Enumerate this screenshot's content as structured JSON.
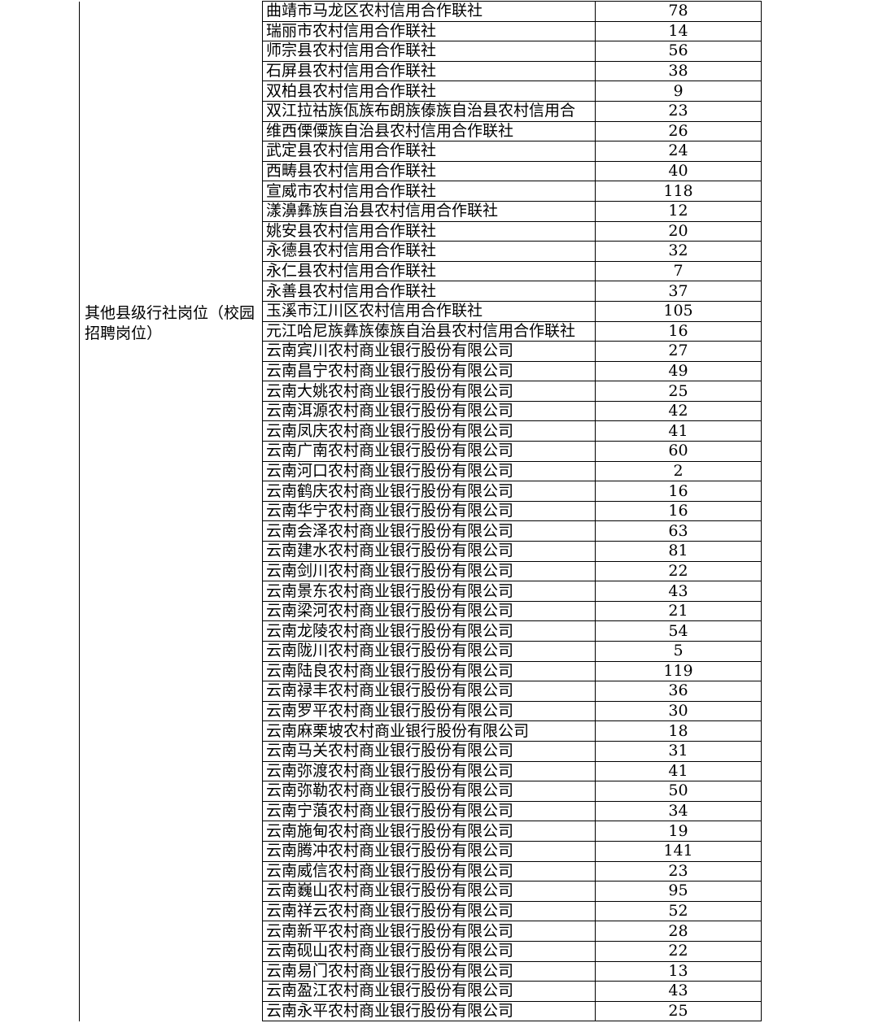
{
  "category": "其他县级行社岗位（校园招聘岗位）",
  "rows": [
    [
      "曲靖市马龙区农村信用合作联社",
      78
    ],
    [
      "瑞丽市农村信用合作联社",
      14
    ],
    [
      "师宗县农村信用合作联社",
      56
    ],
    [
      "石屏县农村信用合作联社",
      38
    ],
    [
      "双柏县农村信用合作联社",
      9
    ],
    [
      "双江拉祜族佤族布朗族傣族自治县农村信用合",
      23
    ],
    [
      "维西傈僳族自治县农村信用合作联社",
      26
    ],
    [
      "武定县农村信用合作联社",
      24
    ],
    [
      "西畴县农村信用合作联社",
      40
    ],
    [
      "宣威市农村信用合作联社",
      118
    ],
    [
      "漾濞彝族自治县农村信用合作联社",
      12
    ],
    [
      "姚安县农村信用合作联社",
      20
    ],
    [
      "永德县农村信用合作联社",
      32
    ],
    [
      "永仁县农村信用合作联社",
      7
    ],
    [
      "永善县农村信用合作联社",
      37
    ],
    [
      "玉溪市江川区农村信用合作联社",
      105
    ],
    [
      "元江哈尼族彝族傣族自治县农村信用合作联社",
      16
    ],
    [
      "云南宾川农村商业银行股份有限公司",
      27
    ],
    [
      "云南昌宁农村商业银行股份有限公司",
      49
    ],
    [
      "云南大姚农村商业银行股份有限公司",
      25
    ],
    [
      "云南洱源农村商业银行股份有限公司",
      42
    ],
    [
      "云南凤庆农村商业银行股份有限公司",
      41
    ],
    [
      "云南广南农村商业银行股份有限公司",
      60
    ],
    [
      "云南河口农村商业银行股份有限公司",
      2
    ],
    [
      "云南鹤庆农村商业银行股份有限公司",
      16
    ],
    [
      "云南华宁农村商业银行股份有限公司",
      16
    ],
    [
      "云南会泽农村商业银行股份有限公司",
      63
    ],
    [
      "云南建水农村商业银行股份有限公司",
      81
    ],
    [
      "云南剑川农村商业银行股份有限公司",
      22
    ],
    [
      "云南景东农村商业银行股份有限公司",
      43
    ],
    [
      "云南梁河农村商业银行股份有限公司",
      21
    ],
    [
      "云南龙陵农村商业银行股份有限公司",
      54
    ],
    [
      "云南陇川农村商业银行股份有限公司",
      5
    ],
    [
      "云南陆良农村商业银行股份有限公司",
      119
    ],
    [
      "云南禄丰农村商业银行股份有限公司",
      36
    ],
    [
      "云南罗平农村商业银行股份有限公司",
      30
    ],
    [
      "云南麻栗坡农村商业银行股份有限公司",
      18
    ],
    [
      "云南马关农村商业银行股份有限公司",
      31
    ],
    [
      "云南弥渡农村商业银行股份有限公司",
      41
    ],
    [
      "云南弥勒农村商业银行股份有限公司",
      50
    ],
    [
      "云南宁蒗农村商业银行股份有限公司",
      34
    ],
    [
      "云南施甸农村商业银行股份有限公司",
      19
    ],
    [
      "云南腾冲农村商业银行股份有限公司",
      141
    ],
    [
      "云南威信农村商业银行股份有限公司",
      23
    ],
    [
      "云南巍山农村商业银行股份有限公司",
      95
    ],
    [
      "云南祥云农村商业银行股份有限公司",
      52
    ],
    [
      "云南新平农村商业银行股份有限公司",
      28
    ],
    [
      "云南砚山农村商业银行股份有限公司",
      22
    ],
    [
      "云南易门农村商业银行股份有限公司",
      13
    ],
    [
      "云南盈江农村商业银行股份有限公司",
      43
    ],
    [
      "云南永平农村商业银行股份有限公司",
      25
    ]
  ]
}
